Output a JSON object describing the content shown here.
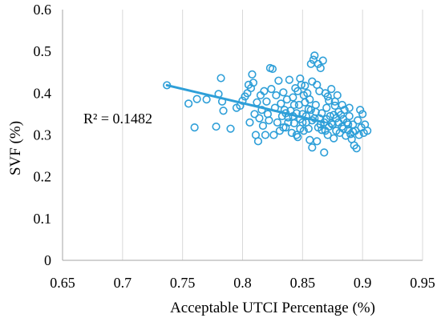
{
  "chart_data": {
    "type": "scatter",
    "title": "",
    "xlabel": "Acceptable UTCI Percentage (%)",
    "ylabel": "SVF (%)",
    "xlim": [
      0.65,
      0.95
    ],
    "ylim": [
      0,
      0.6
    ],
    "xticks": [
      "0.65",
      "0.7",
      "0.75",
      "0.8",
      "0.85",
      "0.9",
      "0.95"
    ],
    "yticks": [
      "0",
      "0.1",
      "0.2",
      "0.3",
      "0.4",
      "0.5",
      "0.6"
    ],
    "grid": "vertical",
    "legend": "none",
    "marker_color": "#2E9FD8",
    "trendline": {
      "type": "linear",
      "x": [
        0.737,
        0.868
      ],
      "y": [
        0.419,
        0.33
      ],
      "color": "#2E9FD8"
    },
    "annotation": "R² = 0.1482",
    "series": [
      {
        "marker": "open-circle",
        "points": [
          [
            0.737,
            0.419
          ],
          [
            0.755,
            0.375
          ],
          [
            0.76,
            0.318
          ],
          [
            0.762,
            0.386
          ],
          [
            0.77,
            0.385
          ],
          [
            0.778,
            0.32
          ],
          [
            0.78,
            0.398
          ],
          [
            0.782,
            0.436
          ],
          [
            0.783,
            0.38
          ],
          [
            0.784,
            0.358
          ],
          [
            0.79,
            0.315
          ],
          [
            0.795,
            0.365
          ],
          [
            0.798,
            0.37
          ],
          [
            0.8,
            0.382
          ],
          [
            0.802,
            0.392
          ],
          [
            0.804,
            0.4
          ],
          [
            0.805,
            0.42
          ],
          [
            0.806,
            0.33
          ],
          [
            0.807,
            0.412
          ],
          [
            0.808,
            0.445
          ],
          [
            0.809,
            0.425
          ],
          [
            0.81,
            0.35
          ],
          [
            0.811,
            0.3
          ],
          [
            0.812,
            0.378
          ],
          [
            0.813,
            0.285
          ],
          [
            0.814,
            0.34
          ],
          [
            0.815,
            0.395
          ],
          [
            0.816,
            0.36
          ],
          [
            0.817,
            0.322
          ],
          [
            0.818,
            0.405
          ],
          [
            0.819,
            0.3
          ],
          [
            0.82,
            0.38
          ],
          [
            0.821,
            0.35
          ],
          [
            0.822,
            0.335
          ],
          [
            0.823,
            0.46
          ],
          [
            0.824,
            0.41
          ],
          [
            0.825,
            0.458
          ],
          [
            0.826,
            0.3
          ],
          [
            0.827,
            0.365
          ],
          [
            0.828,
            0.395
          ],
          [
            0.829,
            0.33
          ],
          [
            0.83,
            0.43
          ],
          [
            0.831,
            0.31
          ],
          [
            0.832,
            0.375
          ],
          [
            0.833,
            0.345
          ],
          [
            0.834,
            0.402
          ],
          [
            0.835,
            0.36
          ],
          [
            0.836,
            0.318
          ],
          [
            0.837,
            0.385
          ],
          [
            0.838,
            0.342
          ],
          [
            0.839,
            0.432
          ],
          [
            0.84,
            0.358
          ],
          [
            0.841,
            0.305
          ],
          [
            0.842,
            0.39
          ],
          [
            0.843,
            0.328
          ],
          [
            0.844,
            0.412
          ],
          [
            0.845,
            0.352
          ],
          [
            0.846,
            0.295
          ],
          [
            0.847,
            0.372
          ],
          [
            0.848,
            0.338
          ],
          [
            0.849,
            0.42
          ],
          [
            0.85,
            0.33
          ],
          [
            0.851,
            0.31
          ],
          [
            0.852,
            0.378
          ],
          [
            0.853,
            0.345
          ],
          [
            0.854,
            0.4
          ],
          [
            0.855,
            0.362
          ],
          [
            0.856,
            0.288
          ],
          [
            0.857,
            0.47
          ],
          [
            0.858,
            0.335
          ],
          [
            0.859,
            0.48
          ],
          [
            0.86,
            0.49
          ],
          [
            0.861,
            0.355
          ],
          [
            0.862,
            0.42
          ],
          [
            0.863,
            0.47
          ],
          [
            0.864,
            0.34
          ],
          [
            0.865,
            0.46
          ],
          [
            0.866,
            0.312
          ],
          [
            0.867,
            0.478
          ],
          [
            0.868,
            0.33
          ],
          [
            0.869,
            0.4
          ],
          [
            0.87,
            0.365
          ],
          [
            0.871,
            0.3
          ],
          [
            0.872,
            0.382
          ],
          [
            0.873,
            0.345
          ],
          [
            0.874,
            0.41
          ],
          [
            0.875,
            0.325
          ],
          [
            0.876,
            0.292
          ],
          [
            0.877,
            0.37
          ],
          [
            0.878,
            0.34
          ],
          [
            0.879,
            0.395
          ],
          [
            0.88,
            0.355
          ],
          [
            0.881,
            0.305
          ],
          [
            0.882,
            0.348
          ],
          [
            0.883,
            0.32
          ],
          [
            0.884,
            0.338
          ],
          [
            0.885,
            0.36
          ],
          [
            0.886,
            0.298
          ],
          [
            0.887,
            0.33
          ],
          [
            0.888,
            0.312
          ],
          [
            0.889,
            0.345
          ],
          [
            0.89,
            0.302
          ],
          [
            0.891,
            0.29
          ],
          [
            0.892,
            0.325
          ],
          [
            0.893,
            0.275
          ],
          [
            0.894,
            0.31
          ],
          [
            0.895,
            0.268
          ],
          [
            0.896,
            0.335
          ],
          [
            0.897,
            0.3
          ],
          [
            0.898,
            0.36
          ],
          [
            0.899,
            0.318
          ],
          [
            0.9,
            0.35
          ],
          [
            0.901,
            0.305
          ],
          [
            0.902,
            0.325
          ],
          [
            0.904,
            0.31
          ],
          [
            0.845,
            0.3
          ],
          [
            0.855,
            0.315
          ],
          [
            0.865,
            0.325
          ],
          [
            0.858,
            0.27
          ],
          [
            0.862,
            0.285
          ],
          [
            0.868,
            0.258
          ],
          [
            0.872,
            0.32
          ],
          [
            0.878,
            0.31
          ],
          [
            0.85,
            0.35
          ],
          [
            0.86,
            0.34
          ],
          [
            0.853,
            0.33
          ],
          [
            0.857,
            0.36
          ],
          [
            0.863,
            0.318
          ],
          [
            0.866,
            0.352
          ],
          [
            0.87,
            0.338
          ],
          [
            0.874,
            0.328
          ],
          [
            0.848,
            0.315
          ],
          [
            0.842,
            0.345
          ],
          [
            0.838,
            0.33
          ],
          [
            0.834,
            0.318
          ],
          [
            0.88,
            0.33
          ],
          [
            0.884,
            0.315
          ],
          [
            0.888,
            0.325
          ],
          [
            0.892,
            0.308
          ],
          [
            0.876,
            0.348
          ],
          [
            0.869,
            0.31
          ],
          [
            0.861,
            0.372
          ],
          [
            0.856,
            0.385
          ],
          [
            0.851,
            0.395
          ],
          [
            0.846,
            0.405
          ],
          [
            0.852,
            0.418
          ],
          [
            0.858,
            0.428
          ],
          [
            0.848,
            0.435
          ],
          [
            0.864,
            0.405
          ],
          [
            0.871,
            0.392
          ],
          [
            0.877,
            0.38
          ],
          [
            0.883,
            0.372
          ],
          [
            0.889,
            0.365
          ],
          [
            0.843,
            0.372
          ],
          [
            0.836,
            0.352
          ]
        ]
      }
    ]
  }
}
